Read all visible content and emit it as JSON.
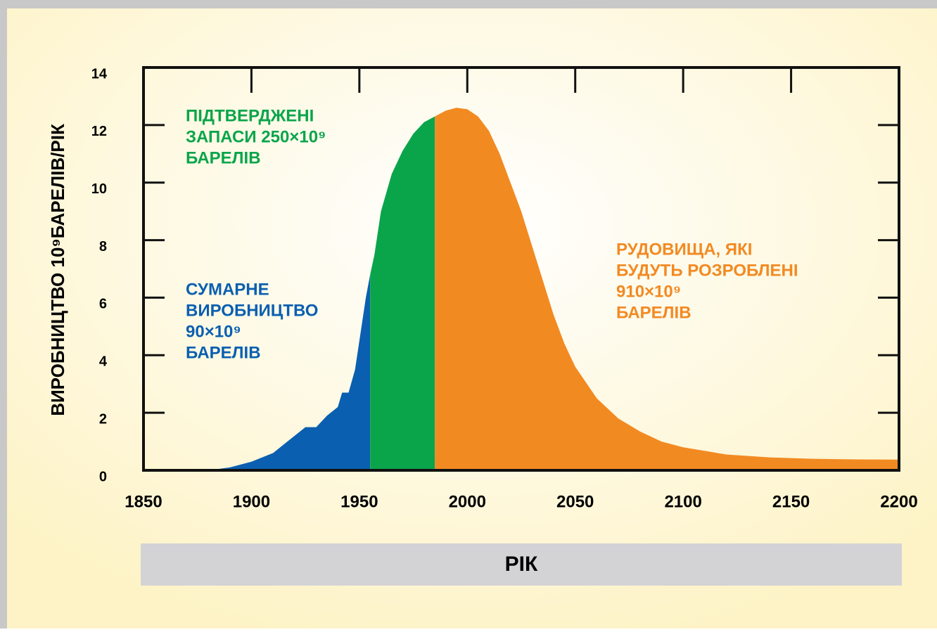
{
  "chart_data": {
    "type": "area",
    "xlabel": "РІК",
    "ylabel": "ВИРОБНИЦТВО 10⁹БАРЕЛІВ/РІК",
    "xlim": [
      1850,
      2200
    ],
    "xticks": [
      1850,
      1900,
      1950,
      2000,
      2050,
      2100,
      2150,
      2200
    ],
    "ylim": [
      0,
      14
    ],
    "yticks": [
      0,
      2,
      4,
      6,
      8,
      10,
      12,
      14
    ],
    "series": [
      {
        "color": "#0a5fb0",
        "x": [
          1880,
          1890,
          1900,
          1910,
          1915,
          1920,
          1925,
          1930,
          1935,
          1940,
          1942,
          1945,
          1948,
          1950,
          1953,
          1955
        ],
        "values": [
          0,
          0.1,
          0.3,
          0.6,
          0.9,
          1.2,
          1.5,
          1.5,
          1.9,
          2.2,
          2.7,
          2.7,
          3.5,
          4.5,
          6.0,
          6.8
        ]
      },
      {
        "color": "#0aa54b",
        "x": [
          1955,
          1957,
          1960,
          1965,
          1970,
          1975,
          1980,
          1985
        ],
        "values": [
          6.8,
          7.5,
          9.0,
          10.3,
          11.1,
          11.7,
          12.1,
          12.3
        ]
      },
      {
        "color": "#f28a22",
        "x": [
          1985,
          1990,
          1995,
          2000,
          2005,
          2010,
          2015,
          2020,
          2025,
          2030,
          2035,
          2040,
          2045,
          2050,
          2060,
          2070,
          2080,
          2090,
          2100,
          2120,
          2140,
          2160,
          2180,
          2200
        ],
        "values": [
          12.3,
          12.5,
          12.6,
          12.55,
          12.3,
          11.8,
          11.0,
          10.0,
          9.0,
          7.8,
          6.6,
          5.4,
          4.4,
          3.6,
          2.5,
          1.8,
          1.35,
          1.0,
          0.8,
          0.55,
          0.45,
          0.4,
          0.38,
          0.37
        ]
      }
    ],
    "annotations": [
      {
        "lines": [
          "ПІДТВЕРДЖЕНІ",
          "ЗАПАСИ 250×10⁹",
          "БАРЕЛІВ"
        ],
        "color": "#0aa54b"
      },
      {
        "lines": [
          "СУМАРНЕ",
          "ВИРОБНИЦТВО",
          "90×10⁹",
          "БАРЕЛІВ"
        ],
        "color": "#0a5fb0"
      },
      {
        "lines": [
          "РУДОВИЩА, ЯКІ",
          "БУДУТЬ РОЗРОБЛЕНІ",
          "910×10⁹",
          "БАРЕЛІВ"
        ],
        "color": "#f28a22"
      }
    ]
  }
}
